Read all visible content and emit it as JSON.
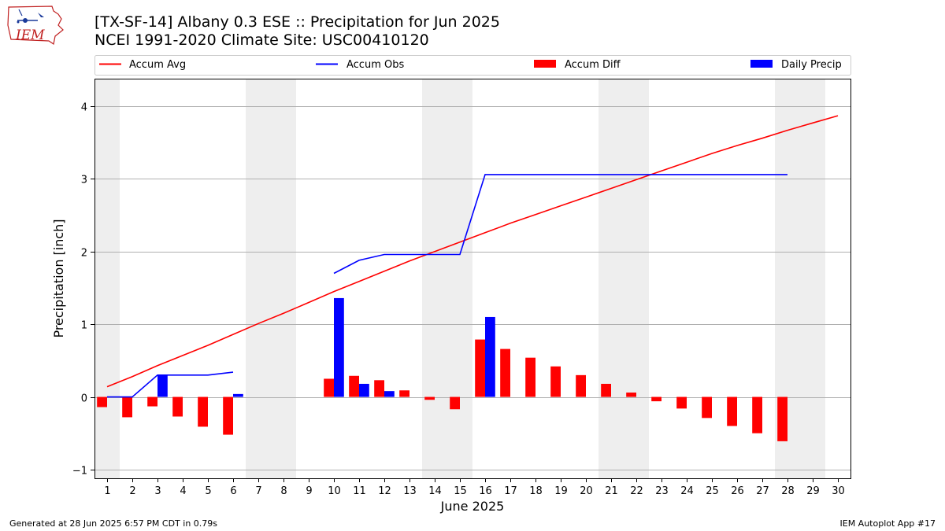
{
  "header": {
    "title_line1": "[TX-SF-14] Albany 0.3 ESE :: Precipitation for Jun 2025",
    "title_line2": "NCEI 1991-2020 Climate Site: USC00410120"
  },
  "logo": {
    "text": "IEM",
    "icon": "iem-state-logo-icon"
  },
  "footer": {
    "left": "Generated at 28 Jun 2025 6:57 PM CDT in 0.79s",
    "right": "IEM Autoplot App #17"
  },
  "colors": {
    "avg": "#ff0000",
    "obs": "#0000ff",
    "diff": "#ff0000",
    "daily": "#0000ff",
    "weekend": "#eeeeee",
    "grid": "#b0b0b0"
  },
  "chart_data": {
    "type": "bar",
    "xlabel": "June 2025",
    "ylabel": "Precipitation [inch]",
    "xlim": [
      0.5,
      30.5
    ],
    "ylim": [
      -1.12,
      4.38
    ],
    "yticks": [
      -1,
      0,
      1,
      2,
      3,
      4
    ],
    "days": [
      1,
      2,
      3,
      4,
      5,
      6,
      7,
      8,
      9,
      10,
      11,
      12,
      13,
      14,
      15,
      16,
      17,
      18,
      19,
      20,
      21,
      22,
      23,
      24,
      25,
      26,
      27,
      28,
      29,
      30
    ],
    "weekend_days": [
      1,
      7,
      8,
      14,
      15,
      21,
      22,
      28,
      29
    ],
    "legend": [
      "Accum Avg",
      "Accum Obs",
      "Accum Diff",
      "Daily Precip"
    ],
    "legend_position": "top",
    "series": [
      {
        "name": "Accum Avg",
        "kind": "line",
        "values": [
          0.14,
          0.28,
          0.43,
          0.57,
          0.71,
          0.86,
          1.01,
          1.15,
          1.3,
          1.45,
          1.59,
          1.73,
          1.87,
          2.0,
          2.13,
          2.26,
          2.39,
          2.51,
          2.63,
          2.75,
          2.87,
          2.99,
          3.11,
          3.23,
          3.35,
          3.46,
          3.56,
          3.67,
          3.77,
          3.87
        ]
      },
      {
        "name": "Accum Obs",
        "kind": "line",
        "values": [
          0.0,
          0.0,
          0.3,
          0.3,
          0.3,
          0.34,
          null,
          null,
          null,
          1.7,
          1.88,
          1.96,
          1.96,
          1.96,
          1.96,
          3.06,
          3.06,
          3.06,
          3.06,
          3.06,
          3.06,
          3.06,
          3.06,
          3.06,
          3.06,
          3.06,
          3.06,
          3.06,
          null,
          null
        ]
      },
      {
        "name": "Accum Diff",
        "kind": "bar",
        "values": [
          -0.14,
          -0.28,
          -0.13,
          -0.27,
          -0.41,
          -0.52,
          null,
          null,
          null,
          0.25,
          0.29,
          0.23,
          0.09,
          -0.04,
          -0.17,
          0.79,
          0.66,
          0.54,
          0.42,
          0.3,
          0.18,
          0.06,
          -0.06,
          -0.16,
          -0.29,
          -0.4,
          -0.5,
          -0.61,
          null,
          null
        ]
      },
      {
        "name": "Daily Precip",
        "kind": "bar",
        "values": [
          0.0,
          0.0,
          0.3,
          0.0,
          0.0,
          0.04,
          null,
          null,
          null,
          1.36,
          0.18,
          0.08,
          0.0,
          0.0,
          0.0,
          1.1,
          0.0,
          0.0,
          0.0,
          0.0,
          0.0,
          0.0,
          0.0,
          0.0,
          0.0,
          0.0,
          0.0,
          0.0,
          null,
          null
        ]
      }
    ]
  }
}
